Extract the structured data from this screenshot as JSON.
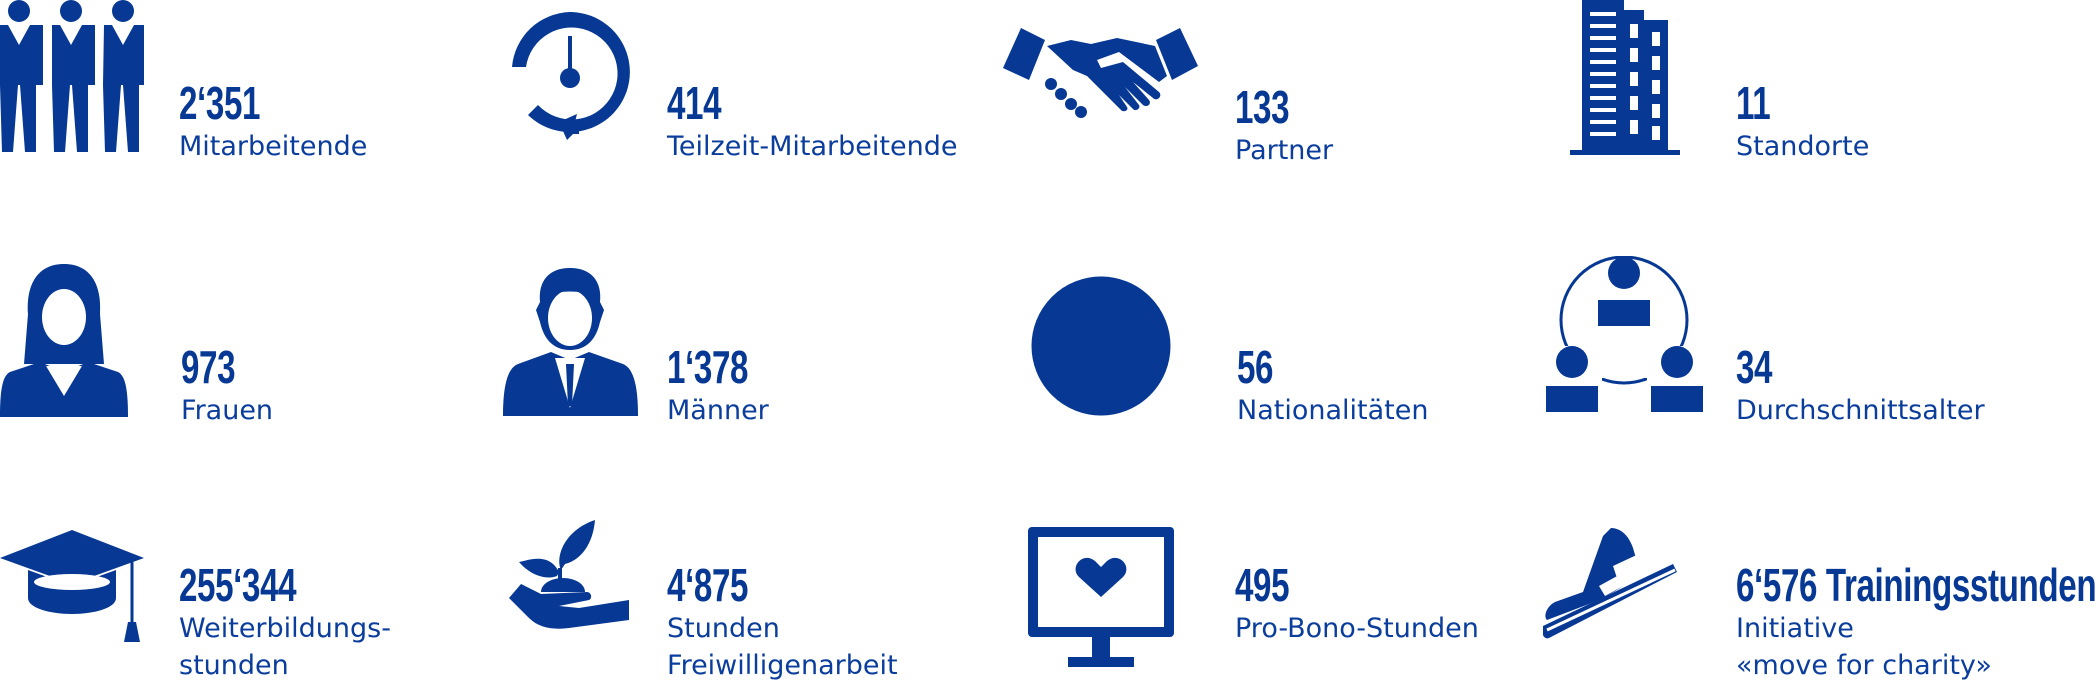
{
  "accent_color": "#063894",
  "stats": [
    {
      "icon": "employees-icon",
      "value": "2‘351",
      "label": [
        "Mitarbeitende"
      ]
    },
    {
      "icon": "part-time-clock-icon",
      "value": "414",
      "label": [
        "Teilzeit-Mitarbeitende"
      ]
    },
    {
      "icon": "handshake-icon",
      "value": "133",
      "label": [
        "Partner"
      ]
    },
    {
      "icon": "building-icon",
      "value": "11",
      "label": [
        "Standorte"
      ]
    },
    {
      "icon": "woman-icon",
      "value": "973",
      "label": [
        "Frauen"
      ]
    },
    {
      "icon": "man-icon",
      "value": "1‘378",
      "label": [
        "Männer"
      ]
    },
    {
      "icon": "globe-icon",
      "value": "56",
      "label": [
        "Nationalitäten"
      ]
    },
    {
      "icon": "group-network-icon",
      "value": "34",
      "label": [
        "Durchschnittsalter"
      ]
    },
    {
      "icon": "graduation-cap-icon",
      "value": "255‘344",
      "label": [
        "Weiterbildungs-",
        "stunden"
      ]
    },
    {
      "icon": "plant-in-hand-icon",
      "value": "4‘875",
      "label": [
        "Stunden",
        "Freiwilligenarbeit"
      ]
    },
    {
      "icon": "monitor-heart-icon",
      "value": "495",
      "label": [
        "Pro-Bono-Stunden"
      ]
    },
    {
      "icon": "sneaker-icon",
      "value": "6‘576 Trainingsstunden",
      "label": [
        "Initiative",
        "«move for charity»"
      ]
    }
  ]
}
